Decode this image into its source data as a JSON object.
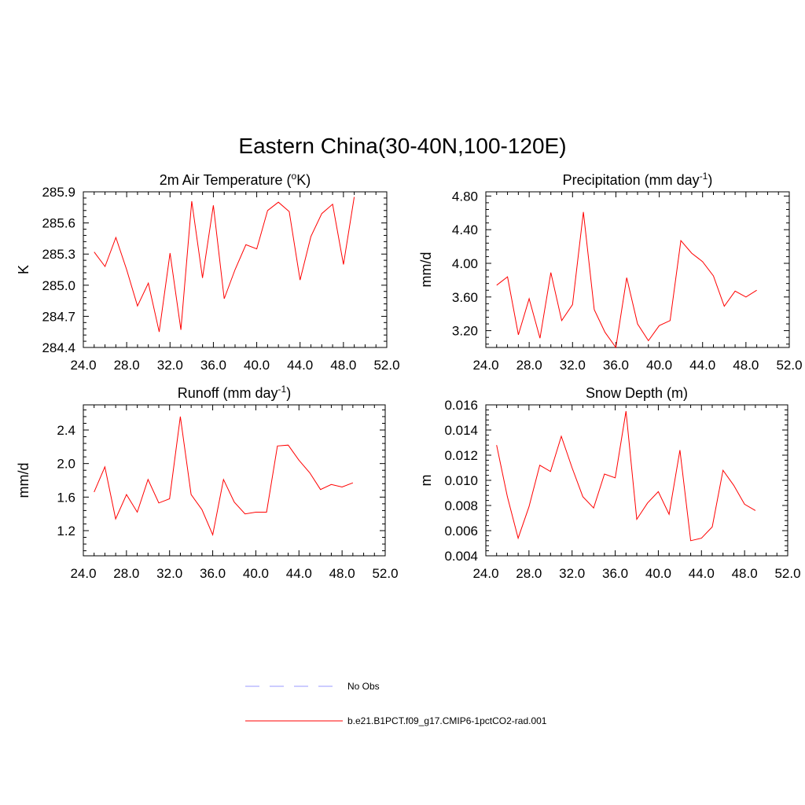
{
  "figure": {
    "title": "Eastern China(30-40N,100-120E)",
    "legend": [
      {
        "label": "No Obs",
        "color": "#9999ff",
        "style": "dashed"
      },
      {
        "label": "b.e21.B1PCT.f09_g17.CMIP6-1pctCO2-rad.001",
        "color": "#ff0000",
        "style": "solid"
      }
    ]
  },
  "chart_data": [
    {
      "type": "line",
      "title": "2m Air Temperature (",
      "title_sup": "o",
      "title_tail": "K)",
      "ylabel": "K",
      "xlim": [
        24,
        52
      ],
      "ylim": [
        284.4,
        285.9
      ],
      "xticks": [
        "24.0",
        "28.0",
        "32.0",
        "36.0",
        "40.0",
        "44.0",
        "48.0",
        "52.0"
      ],
      "yticks": [
        "284.4",
        "284.7",
        "285.0",
        "285.3",
        "285.6",
        "285.9"
      ],
      "x": [
        25,
        26,
        27,
        28,
        29,
        30,
        31,
        32,
        33,
        34,
        35,
        36,
        37,
        38,
        39,
        40,
        41,
        42,
        43,
        44,
        45,
        46,
        47,
        48,
        49
      ],
      "series": [
        {
          "color": "#ff0000",
          "values": [
            285.32,
            285.18,
            285.46,
            285.15,
            284.8,
            285.02,
            284.55,
            285.31,
            284.57,
            285.81,
            285.07,
            285.77,
            284.87,
            285.15,
            285.39,
            285.35,
            285.72,
            285.8,
            285.71,
            285.05,
            285.47,
            285.69,
            285.78,
            285.2,
            285.85
          ]
        }
      ]
    },
    {
      "type": "line",
      "title": "Precipitation (mm day",
      "title_sup": "-1",
      "title_tail": ")",
      "ylabel": "mm/d",
      "xlim": [
        24,
        52
      ],
      "ylim": [
        3.0,
        4.85
      ],
      "xticks": [
        "24.0",
        "28.0",
        "32.0",
        "36.0",
        "40.0",
        "44.0",
        "48.0",
        "52.0"
      ],
      "yticks": [
        "3.20",
        "3.60",
        "4.00",
        "4.40",
        "4.80"
      ],
      "x": [
        25,
        26,
        27,
        28,
        29,
        30,
        31,
        32,
        33,
        34,
        35,
        36,
        37,
        38,
        39,
        40,
        41,
        42,
        43,
        44,
        45,
        46,
        47,
        48,
        49
      ],
      "series": [
        {
          "color": "#ff0000",
          "values": [
            3.74,
            3.84,
            3.15,
            3.58,
            3.11,
            3.89,
            3.32,
            3.51,
            4.61,
            3.45,
            3.18,
            3.0,
            3.83,
            3.28,
            3.08,
            3.26,
            3.32,
            4.27,
            4.12,
            4.02,
            3.85,
            3.49,
            3.67,
            3.6,
            3.68
          ]
        }
      ]
    },
    {
      "type": "line",
      "title": "Runoff (mm day",
      "title_sup": "-1",
      "title_tail": ")",
      "ylabel": "mm/d",
      "xlim": [
        24,
        52
      ],
      "ylim": [
        0.9,
        2.7
      ],
      "xticks": [
        "24.0",
        "28.0",
        "32.0",
        "36.0",
        "40.0",
        "44.0",
        "48.0",
        "52.0"
      ],
      "yticks": [
        "1.2",
        "1.6",
        "2.0",
        "2.4"
      ],
      "x": [
        25,
        26,
        27,
        28,
        29,
        30,
        31,
        32,
        33,
        34,
        35,
        36,
        37,
        38,
        39,
        40,
        41,
        42,
        43,
        44,
        45,
        46,
        47,
        48,
        49
      ],
      "series": [
        {
          "color": "#ff0000",
          "values": [
            1.66,
            1.96,
            1.34,
            1.63,
            1.42,
            1.81,
            1.53,
            1.58,
            2.56,
            1.63,
            1.45,
            1.15,
            1.81,
            1.54,
            1.4,
            1.42,
            1.42,
            2.21,
            2.22,
            2.04,
            1.89,
            1.69,
            1.75,
            1.72,
            1.77
          ]
        }
      ]
    },
    {
      "type": "line",
      "title": "Snow Depth (m)",
      "title_sup": "",
      "title_tail": "",
      "ylabel": "m",
      "xlim": [
        24,
        52
      ],
      "ylim": [
        0.004,
        0.016
      ],
      "xticks": [
        "24.0",
        "28.0",
        "32.0",
        "36.0",
        "40.0",
        "44.0",
        "48.0",
        "52.0"
      ],
      "yticks": [
        "0.004",
        "0.006",
        "0.008",
        "0.010",
        "0.012",
        "0.014",
        "0.016"
      ],
      "x": [
        25,
        26,
        27,
        28,
        29,
        30,
        31,
        32,
        33,
        34,
        35,
        36,
        37,
        38,
        39,
        40,
        41,
        42,
        43,
        44,
        45,
        46,
        47,
        48,
        49
      ],
      "series": [
        {
          "color": "#ff0000",
          "values": [
            0.0128,
            0.0087,
            0.0054,
            0.0079,
            0.0112,
            0.0107,
            0.0135,
            0.011,
            0.0087,
            0.0078,
            0.0105,
            0.0102,
            0.0155,
            0.0069,
            0.0082,
            0.0091,
            0.0073,
            0.0124,
            0.0052,
            0.0054,
            0.0063,
            0.0108,
            0.0096,
            0.0081,
            0.0076
          ]
        }
      ]
    }
  ]
}
